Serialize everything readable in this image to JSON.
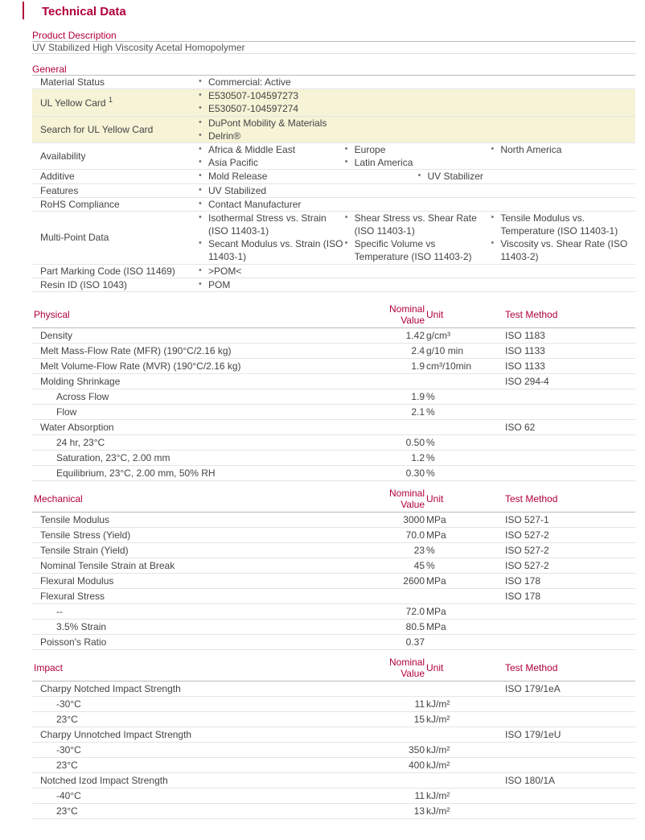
{
  "title": "Technical Data",
  "sections": {
    "product_description": {
      "header": "Product Description",
      "text": "UV Stabilized High Viscosity Acetal Homopolymer"
    },
    "general": {
      "header": "General",
      "rows": [
        {
          "label": "Material Status",
          "cols": [
            [
              "Commercial: Active"
            ]
          ],
          "alt": false
        },
        {
          "label": "UL Yellow Card ",
          "sup": "1",
          "cols": [
            [
              "E530507-104597273",
              "E530507-104597274"
            ]
          ],
          "alt": true,
          "link": true
        },
        {
          "label": "Search for UL Yellow Card",
          "cols": [
            [
              "DuPont Mobility & Materials",
              "Delrin®"
            ]
          ],
          "alt": true,
          "link": true
        },
        {
          "label": "Availability",
          "cols": [
            [
              "Africa & Middle East",
              "Asia Pacific"
            ],
            [
              "Europe",
              "Latin America"
            ],
            [
              "North America"
            ]
          ],
          "alt": false
        },
        {
          "label": "Additive",
          "cols": [
            [
              "Mold Release"
            ],
            [
              "UV Stabilizer"
            ]
          ],
          "alt": false
        },
        {
          "label": "Features",
          "cols": [
            [
              "UV Stabilized"
            ]
          ],
          "alt": false
        },
        {
          "label": "RoHS Compliance",
          "cols": [
            [
              "Contact Manufacturer"
            ]
          ],
          "alt": false
        },
        {
          "label": "Multi-Point Data",
          "cols": [
            [
              "Isothermal Stress vs. Strain (ISO 11403-1)",
              "Secant Modulus vs. Strain (ISO 11403-1)"
            ],
            [
              "Shear Stress vs. Shear Rate (ISO 11403-1)",
              "Specific Volume vs Temperature (ISO 11403-2)"
            ],
            [
              "Tensile Modulus vs. Temperature (ISO 11403-1)",
              "Viscosity vs. Shear Rate (ISO 11403-2)"
            ]
          ],
          "alt": false
        },
        {
          "label": "Part Marking Code (ISO 11469)",
          "cols": [
            [
              ">POM<"
            ]
          ],
          "alt": false
        },
        {
          "label": "Resin ID (ISO 1043)",
          "cols": [
            [
              "POM"
            ]
          ],
          "alt": false
        }
      ]
    }
  },
  "columns": {
    "nominal": "Nominal Value",
    "unit": "Unit",
    "test": "Test Method"
  },
  "dataSections": [
    {
      "name": "Physical",
      "rows": [
        {
          "prop": "Density",
          "nv": "1.42",
          "unit": "g/cm³",
          "tm": "ISO 1183"
        },
        {
          "prop": "Melt Mass-Flow Rate (MFR) (190°C/2.16 kg)",
          "nv": "2.4",
          "unit": "g/10 min",
          "tm": "ISO 1133"
        },
        {
          "prop": "Melt Volume-Flow Rate (MVR) (190°C/2.16 kg)",
          "nv": "1.9",
          "unit": "cm³/10min",
          "tm": "ISO 1133"
        },
        {
          "prop": "Molding Shrinkage",
          "nv": "",
          "unit": "",
          "tm": "ISO 294-4"
        },
        {
          "prop": "Across Flow",
          "sub": 1,
          "nv": "1.9",
          "unit": "%",
          "tm": ""
        },
        {
          "prop": "Flow",
          "sub": 1,
          "nv": "2.1",
          "unit": "%",
          "tm": ""
        },
        {
          "prop": "Water Absorption",
          "nv": "",
          "unit": "",
          "tm": "ISO 62"
        },
        {
          "prop": "24 hr, 23°C",
          "sub": 1,
          "nv": "0.50",
          "unit": "%",
          "tm": ""
        },
        {
          "prop": "Saturation, 23°C, 2.00 mm",
          "sub": 1,
          "nv": "1.2",
          "unit": "%",
          "tm": ""
        },
        {
          "prop": "Equilibrium, 23°C, 2.00 mm, 50% RH",
          "sub": 1,
          "nv": "0.30",
          "unit": "%",
          "tm": ""
        }
      ]
    },
    {
      "name": "Mechanical",
      "rows": [
        {
          "prop": "Tensile Modulus",
          "nv": "3000",
          "unit": "MPa",
          "tm": "ISO 527-1"
        },
        {
          "prop": "Tensile Stress (Yield)",
          "nv": "70.0",
          "unit": "MPa",
          "tm": "ISO 527-2"
        },
        {
          "prop": "Tensile Strain (Yield)",
          "nv": "23",
          "unit": "%",
          "tm": "ISO 527-2"
        },
        {
          "prop": "Nominal Tensile Strain at Break",
          "nv": "45",
          "unit": "%",
          "tm": "ISO 527-2"
        },
        {
          "prop": "Flexural Modulus",
          "nv": "2600",
          "unit": "MPa",
          "tm": "ISO 178"
        },
        {
          "prop": "Flexural Stress",
          "nv": "",
          "unit": "",
          "tm": "ISO 178"
        },
        {
          "prop": "--",
          "sub": 1,
          "nv": "72.0",
          "unit": "MPa",
          "tm": ""
        },
        {
          "prop": "3.5% Strain",
          "sub": 1,
          "nv": "80.5",
          "unit": "MPa",
          "tm": ""
        },
        {
          "prop": "Poisson's Ratio",
          "nv": "0.37",
          "unit": "",
          "tm": ""
        }
      ]
    },
    {
      "name": "Impact",
      "rows": [
        {
          "prop": "Charpy Notched Impact Strength",
          "nv": "",
          "unit": "",
          "tm": "ISO 179/1eA"
        },
        {
          "prop": "-30°C",
          "sub": 1,
          "nv": "11",
          "unit": "kJ/m²",
          "tm": ""
        },
        {
          "prop": "23°C",
          "sub": 1,
          "nv": "15",
          "unit": "kJ/m²",
          "tm": ""
        },
        {
          "prop": "Charpy Unnotched Impact Strength",
          "nv": "",
          "unit": "",
          "tm": "ISO 179/1eU"
        },
        {
          "prop": "-30°C",
          "sub": 1,
          "nv": "350",
          "unit": "kJ/m²",
          "tm": ""
        },
        {
          "prop": "23°C",
          "sub": 1,
          "nv": "400",
          "unit": "kJ/m²",
          "tm": ""
        },
        {
          "prop": "Notched Izod Impact Strength",
          "nv": "",
          "unit": "",
          "tm": "ISO 180/1A"
        },
        {
          "prop": "-40°C",
          "sub": 1,
          "nv": "11",
          "unit": "kJ/m²",
          "tm": ""
        },
        {
          "prop": "23°C",
          "sub": 1,
          "nv": "13",
          "unit": "kJ/m²",
          "tm": ""
        }
      ]
    }
  ]
}
